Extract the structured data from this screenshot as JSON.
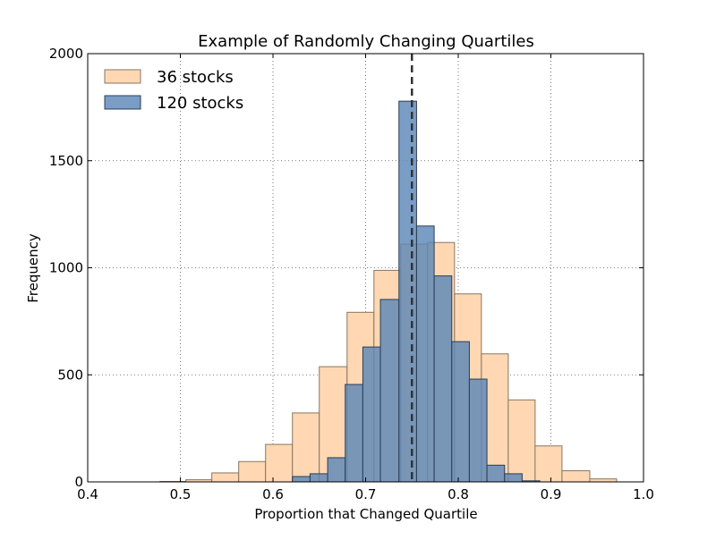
{
  "chart_data": {
    "type": "bar",
    "title": "Example of Randomly Changing Quartiles",
    "xlabel": "Proportion that Changed Quartile",
    "ylabel": "Frequency",
    "xlim": [
      0.4,
      1.0
    ],
    "ylim": [
      0,
      2000
    ],
    "x_ticks": [
      0.4,
      0.5,
      0.6,
      0.7,
      0.8,
      0.9,
      1.0
    ],
    "x_tick_labels": [
      "0.4",
      "0.5",
      "0.6",
      "0.7",
      "0.8",
      "0.9",
      "1.0"
    ],
    "y_ticks": [
      0,
      500,
      1000,
      1500,
      2000
    ],
    "y_tick_labels": [
      "0",
      "500",
      "1000",
      "1500",
      "2000"
    ],
    "grid": true,
    "legend_position": "upper-left",
    "reference_line": {
      "x": 0.75,
      "style": "dashed",
      "color": "#333333"
    },
    "series": [
      {
        "name": "36 stocks",
        "color": "#ffd8b3",
        "edge_color": "#8a7560",
        "bins": [
          {
            "x0": 0.478,
            "x1": 0.506,
            "value": 2
          },
          {
            "x0": 0.506,
            "x1": 0.534,
            "value": 10
          },
          {
            "x0": 0.534,
            "x1": 0.563,
            "value": 42
          },
          {
            "x0": 0.563,
            "x1": 0.592,
            "value": 95
          },
          {
            "x0": 0.592,
            "x1": 0.621,
            "value": 175
          },
          {
            "x0": 0.621,
            "x1": 0.65,
            "value": 322
          },
          {
            "x0": 0.65,
            "x1": 0.68,
            "value": 538
          },
          {
            "x0": 0.68,
            "x1": 0.709,
            "value": 792
          },
          {
            "x0": 0.709,
            "x1": 0.738,
            "value": 988
          },
          {
            "x0": 0.738,
            "x1": 0.767,
            "value": 1110
          },
          {
            "x0": 0.767,
            "x1": 0.796,
            "value": 1118
          },
          {
            "x0": 0.796,
            "x1": 0.825,
            "value": 878
          },
          {
            "x0": 0.825,
            "x1": 0.854,
            "value": 598
          },
          {
            "x0": 0.854,
            "x1": 0.883,
            "value": 383
          },
          {
            "x0": 0.883,
            "x1": 0.912,
            "value": 168
          },
          {
            "x0": 0.912,
            "x1": 0.942,
            "value": 52
          },
          {
            "x0": 0.942,
            "x1": 0.971,
            "value": 14
          }
        ]
      },
      {
        "name": "120 stocks",
        "color": "#5b88b8",
        "edge_color": "#2a3d55",
        "bins": [
          {
            "x0": 0.621,
            "x1": 0.64,
            "value": 25
          },
          {
            "x0": 0.64,
            "x1": 0.659,
            "value": 38
          },
          {
            "x0": 0.659,
            "x1": 0.678,
            "value": 113
          },
          {
            "x0": 0.678,
            "x1": 0.697,
            "value": 455
          },
          {
            "x0": 0.697,
            "x1": 0.716,
            "value": 630
          },
          {
            "x0": 0.716,
            "x1": 0.736,
            "value": 852
          },
          {
            "x0": 0.736,
            "x1": 0.755,
            "value": 1778
          },
          {
            "x0": 0.755,
            "x1": 0.774,
            "value": 1195
          },
          {
            "x0": 0.774,
            "x1": 0.793,
            "value": 962
          },
          {
            "x0": 0.793,
            "x1": 0.812,
            "value": 655
          },
          {
            "x0": 0.812,
            "x1": 0.831,
            "value": 480
          },
          {
            "x0": 0.831,
            "x1": 0.85,
            "value": 78
          },
          {
            "x0": 0.85,
            "x1": 0.869,
            "value": 38
          },
          {
            "x0": 0.869,
            "x1": 0.888,
            "value": 5
          }
        ]
      }
    ]
  }
}
